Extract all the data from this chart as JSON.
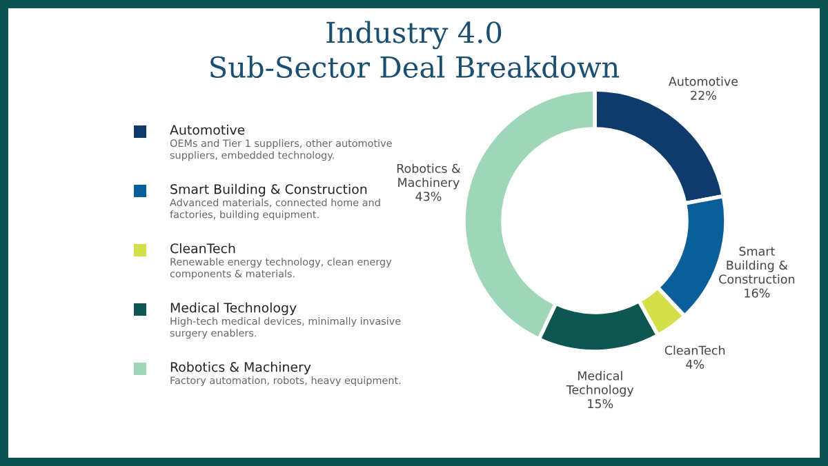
{
  "chart_data": {
    "type": "donut",
    "title": "Industry 4.0\nSub-Sector Deal Breakdown",
    "categories": [
      "Automotive",
      "Smart Building & Construction",
      "CleanTech",
      "Medical Technology",
      "Robotics & Machinery"
    ],
    "values": [
      22,
      16,
      4,
      15,
      43
    ],
    "value_labels": [
      "22%",
      "16%",
      "4%",
      "15%",
      "43%"
    ],
    "colors": [
      "#0e3b6b",
      "#0a5e99",
      "#d4e04a",
      "#0d5651",
      "#9fd6b8"
    ],
    "legend": "left",
    "annotations": [
      "OEMs and Tier 1 suppliers, other automotive suppliers, embedded technology.",
      "Advanced materials, connected home and factories, building equipment.",
      "Renewable energy technology, clean energy components & materials.",
      "High-tech medical devices, minimally invasive surgery enablers.",
      "Factory automation, robots, heavy equipment."
    ]
  }
}
